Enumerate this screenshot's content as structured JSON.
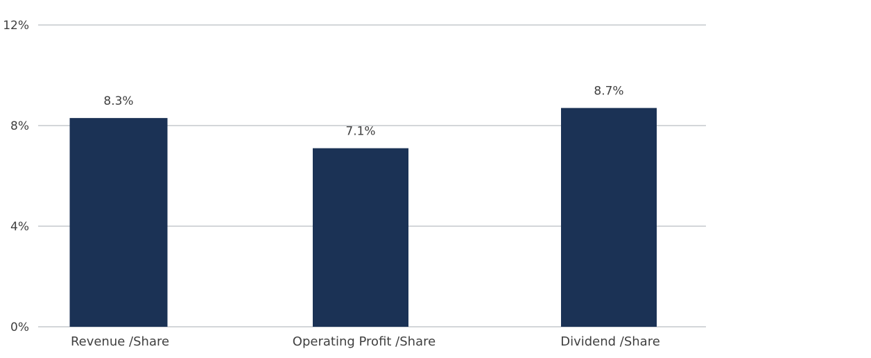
{
  "chart_data": {
    "type": "bar",
    "title": "",
    "xlabel": "",
    "ylabel": "",
    "categories": [
      "Revenue /Share",
      "Operating Profit /Share",
      "Dividend /Share"
    ],
    "values": [
      8.3,
      7.1,
      8.7
    ],
    "value_labels": [
      "8.3%",
      "7.1%",
      "8.7%"
    ],
    "ylim": [
      0,
      12
    ],
    "yticks": [
      0,
      4,
      8,
      12
    ],
    "ytick_labels": [
      "0%",
      "4%",
      "8%",
      "12%"
    ],
    "grid": true,
    "legend": "none",
    "colors": {
      "bar": "#1b3255",
      "grid": "#d3d6d9",
      "text": "#3f3f3f"
    }
  }
}
